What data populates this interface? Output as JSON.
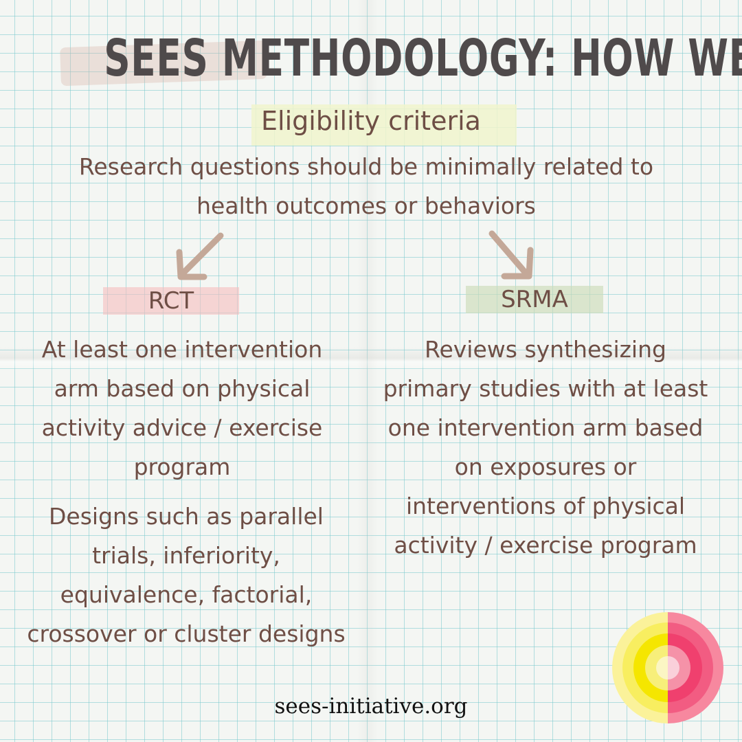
{
  "title": "SEES METHODOLOGY: HOW WE DO",
  "section_heading": "Eligibility criteria",
  "research_question": "Research questions should be minimally related to health outcomes or behaviors",
  "rct": {
    "label": "RCT",
    "criterion_1": "At least one intervention arm based on physical activity advice / exercise program",
    "criterion_2": "Designs such as parallel trials, inferiority, equivalence, factorial, crossover or cluster designs"
  },
  "srma": {
    "label": "SRMA",
    "criterion_1": "Reviews synthesizing primary studies with at least one intervention arm based on exposures or interventions of physical activity / exercise program"
  },
  "website": "sees-initiative.org",
  "colors": {
    "text": "#6e4e45",
    "title": "#4f4a4b",
    "arrow": "#c4a898",
    "rct_highlight": "#f5bebe",
    "srma_highlight": "#cddcb9",
    "logo_yellow": "#f5e600",
    "logo_pink": "#f0406e"
  },
  "icons": [
    "arrow-down-left-icon",
    "arrow-down-right-icon",
    "sees-logo-icon"
  ]
}
